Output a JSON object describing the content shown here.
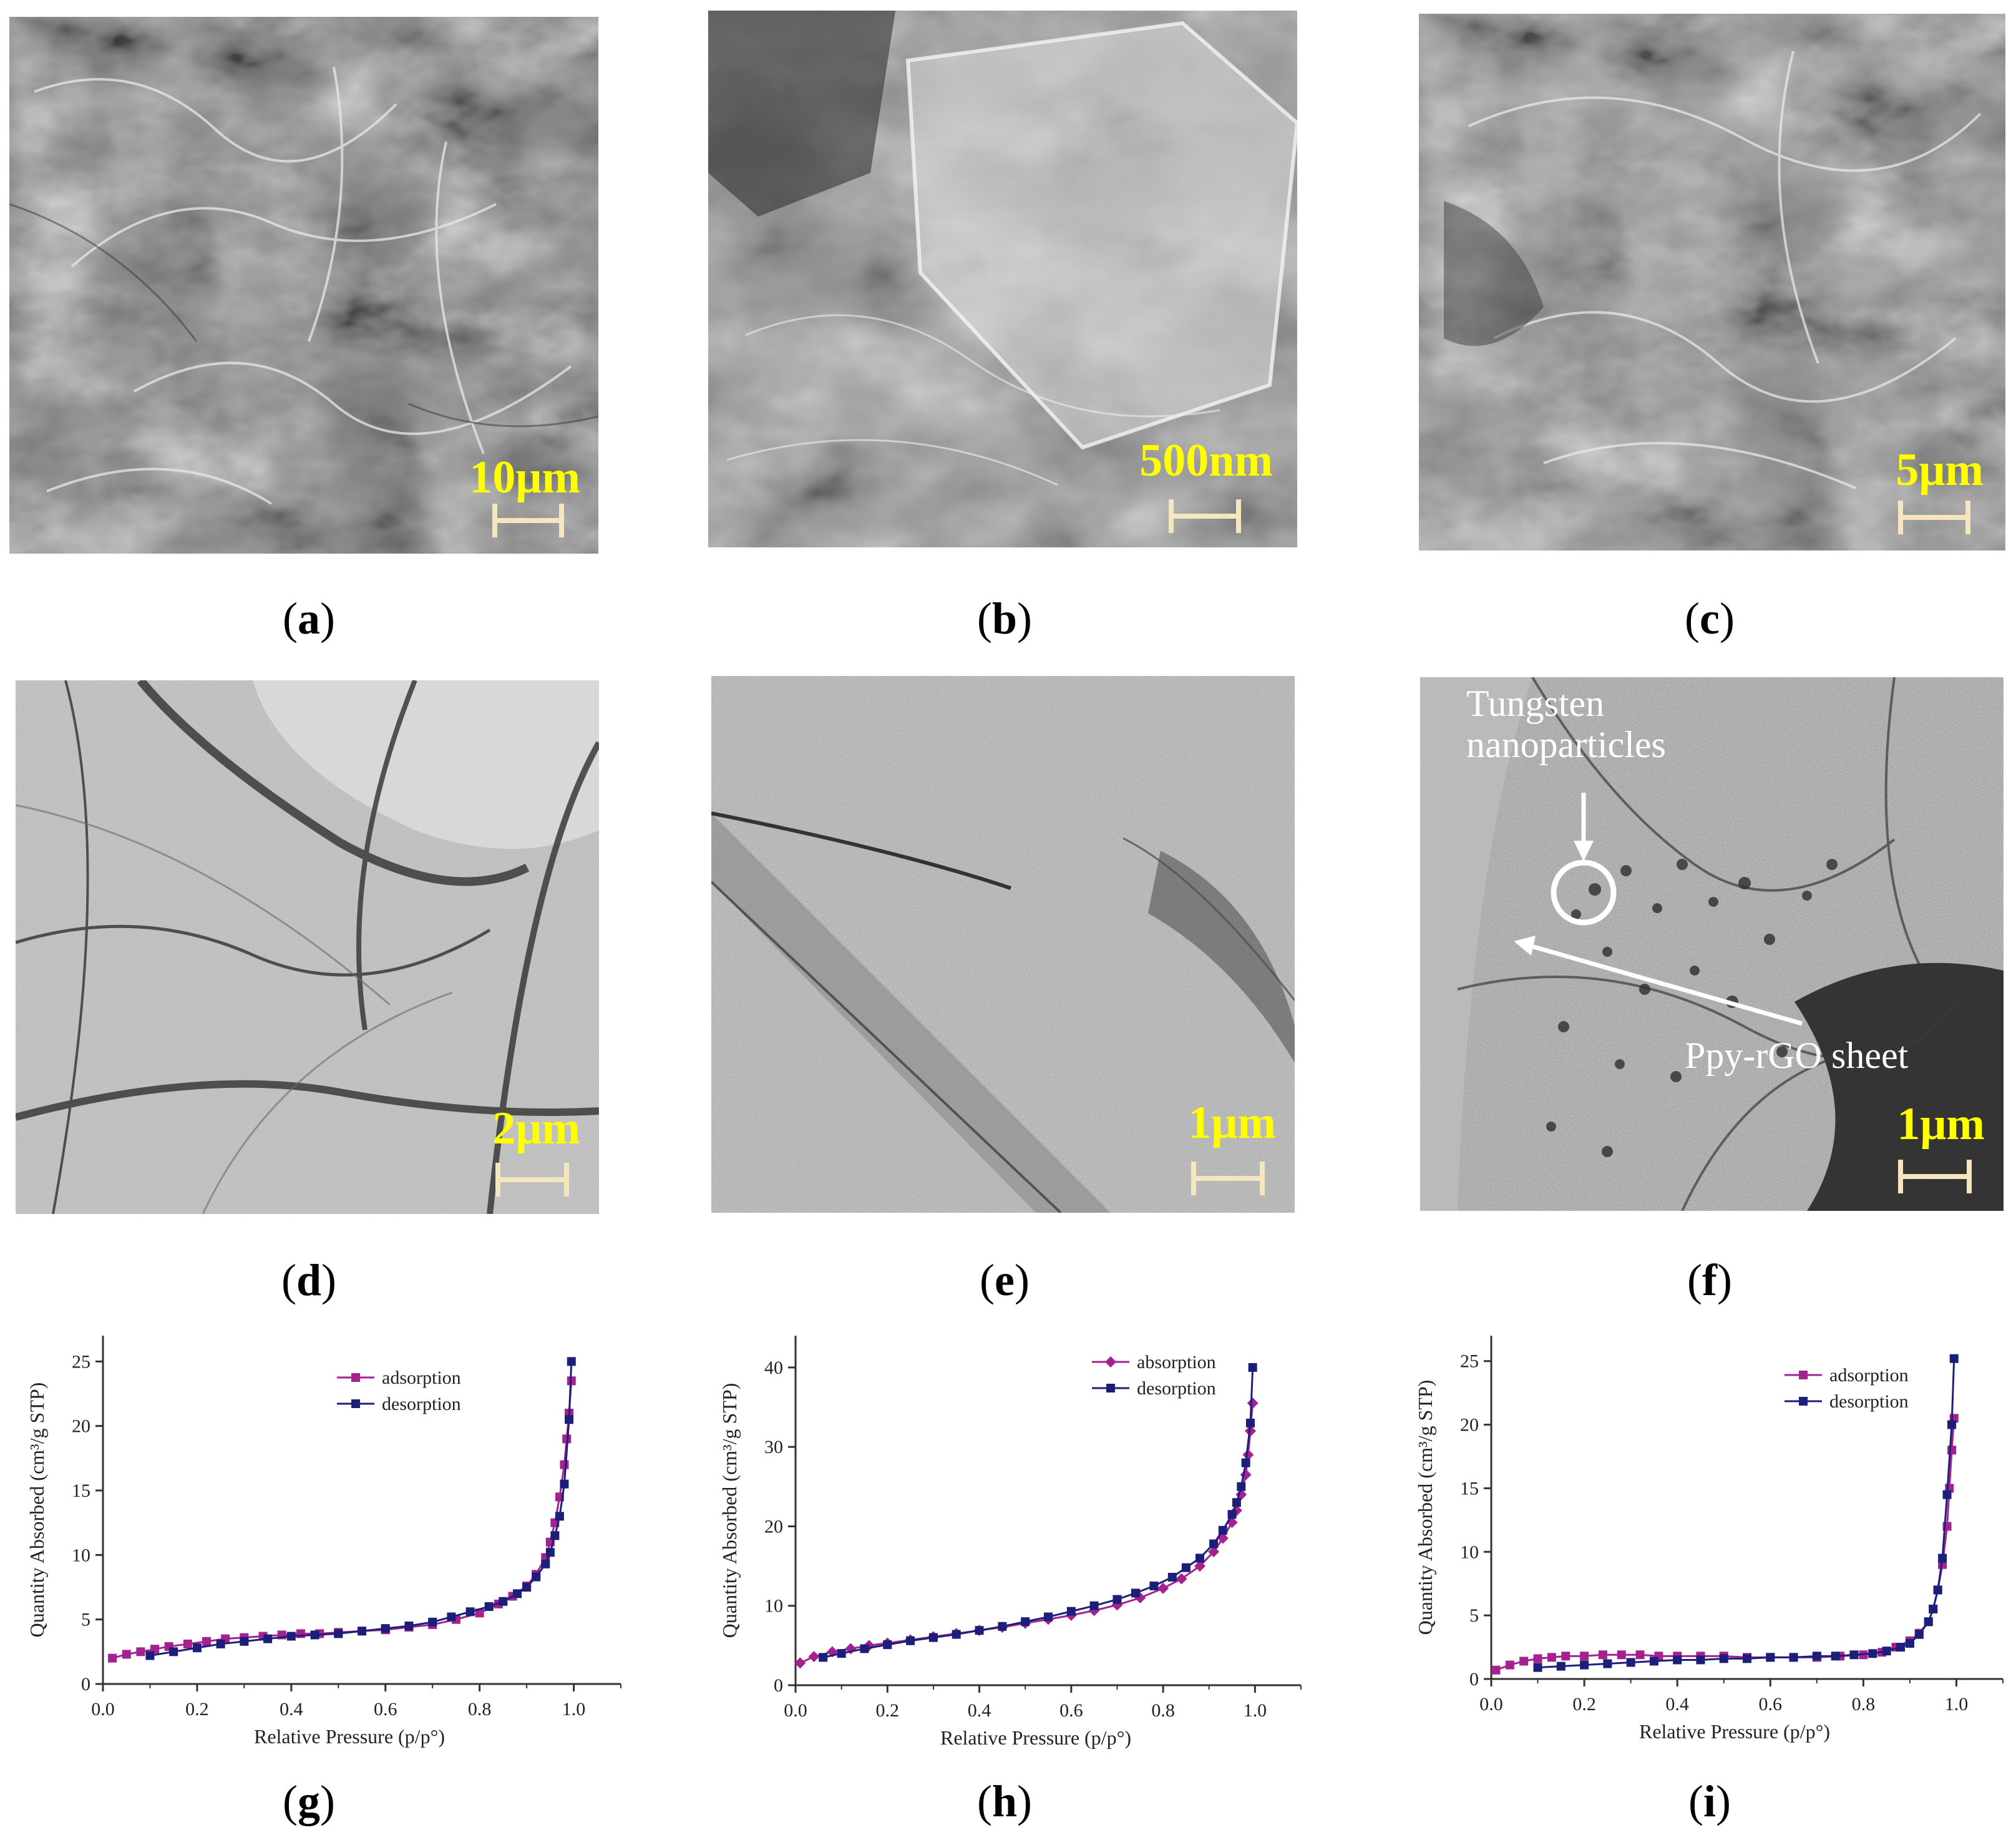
{
  "panels": {
    "a": {
      "label": "a",
      "scale_bar": "10μm"
    },
    "b": {
      "label": "b",
      "scale_bar": "500nm"
    },
    "c": {
      "label": "c",
      "scale_bar": "5μm"
    },
    "d": {
      "label": "d",
      "scale_bar": "2μm"
    },
    "e": {
      "label": "e",
      "scale_bar": "1μm"
    },
    "f": {
      "label": "f",
      "scale_bar": "1μm",
      "annotation_particles_line1": "Tungsten",
      "annotation_particles_line2": "nanoparticles",
      "annotation_sheet": "Ppy-rGO sheet"
    },
    "g": {
      "label": "g"
    },
    "h": {
      "label": "h"
    },
    "i": {
      "label": "i"
    }
  },
  "colors": {
    "adsorption": "#a3228f",
    "desorption": "#1c1f7a",
    "scale_bar": "#f5e6c0",
    "scale_text": "#ffff00"
  },
  "chart_data": [
    {
      "panel": "g",
      "type": "line",
      "xlabel": "Relative Pressure (p/p°)",
      "ylabel": "Quantity Absorbed (cm³/g STP)",
      "xlim": [
        0,
        1.1
      ],
      "ylim": [
        0,
        27
      ],
      "xticks": [
        "0.0",
        "0.2",
        "0.4",
        "0.6",
        "0.8",
        "1.0"
      ],
      "yticks": [
        "0",
        "5",
        "10",
        "15",
        "20",
        "25"
      ],
      "legend": "top-right",
      "series": [
        {
          "name": "adsorption",
          "marker": "square",
          "x": [
            0.02,
            0.05,
            0.08,
            0.11,
            0.14,
            0.18,
            0.22,
            0.26,
            0.3,
            0.34,
            0.38,
            0.42,
            0.46,
            0.5,
            0.55,
            0.6,
            0.65,
            0.7,
            0.75,
            0.8,
            0.84,
            0.87,
            0.9,
            0.92,
            0.94,
            0.95,
            0.96,
            0.97,
            0.98,
            0.985,
            0.99,
            0.995
          ],
          "y": [
            2.0,
            2.3,
            2.5,
            2.7,
            2.9,
            3.1,
            3.3,
            3.5,
            3.6,
            3.7,
            3.8,
            3.9,
            3.9,
            4.0,
            4.1,
            4.2,
            4.4,
            4.6,
            5.0,
            5.5,
            6.2,
            6.8,
            7.6,
            8.5,
            9.8,
            11.0,
            12.5,
            14.5,
            17.0,
            19.0,
            21.0,
            23.5
          ]
        },
        {
          "name": "desorption",
          "marker": "square",
          "x": [
            0.995,
            0.99,
            0.98,
            0.97,
            0.96,
            0.95,
            0.94,
            0.92,
            0.9,
            0.88,
            0.85,
            0.82,
            0.78,
            0.74,
            0.7,
            0.65,
            0.6,
            0.55,
            0.5,
            0.45,
            0.4,
            0.35,
            0.3,
            0.25,
            0.2,
            0.15,
            0.1
          ],
          "y": [
            25.0,
            20.5,
            15.5,
            13.0,
            11.5,
            10.2,
            9.3,
            8.3,
            7.5,
            7.0,
            6.4,
            6.0,
            5.6,
            5.2,
            4.8,
            4.5,
            4.3,
            4.1,
            3.9,
            3.8,
            3.7,
            3.5,
            3.3,
            3.1,
            2.8,
            2.5,
            2.2
          ]
        }
      ]
    },
    {
      "panel": "h",
      "type": "line",
      "xlabel": "Relative Pressure (p/p°)",
      "ylabel": "Quantity Absorbed (cm³/g STP)",
      "xlim": [
        0,
        1.1
      ],
      "ylim": [
        0,
        44
      ],
      "xticks": [
        "0.0",
        "0.2",
        "0.4",
        "0.6",
        "0.8",
        "1.0"
      ],
      "yticks": [
        "0",
        "10",
        "20",
        "30",
        "40"
      ],
      "legend": "top-right",
      "series": [
        {
          "name": "absorption",
          "marker": "diamond",
          "x": [
            0.01,
            0.04,
            0.08,
            0.12,
            0.16,
            0.2,
            0.25,
            0.3,
            0.35,
            0.4,
            0.45,
            0.5,
            0.55,
            0.6,
            0.65,
            0.7,
            0.75,
            0.8,
            0.84,
            0.88,
            0.91,
            0.93,
            0.95,
            0.96,
            0.97,
            0.98,
            0.985,
            0.99,
            0.995
          ],
          "y": [
            2.8,
            3.6,
            4.2,
            4.6,
            5.0,
            5.3,
            5.7,
            6.1,
            6.5,
            6.9,
            7.3,
            7.8,
            8.3,
            8.8,
            9.4,
            10.1,
            11.0,
            12.2,
            13.4,
            15.0,
            16.8,
            18.5,
            20.5,
            22.0,
            24.0,
            26.5,
            29.0,
            32.0,
            35.5
          ]
        },
        {
          "name": "desorption",
          "marker": "square",
          "x": [
            0.995,
            0.99,
            0.98,
            0.97,
            0.96,
            0.95,
            0.93,
            0.91,
            0.88,
            0.85,
            0.82,
            0.78,
            0.74,
            0.7,
            0.65,
            0.6,
            0.55,
            0.5,
            0.45,
            0.4,
            0.35,
            0.3,
            0.25,
            0.2,
            0.15,
            0.1,
            0.06
          ],
          "y": [
            40.0,
            33.0,
            28.0,
            25.0,
            23.0,
            21.5,
            19.5,
            17.8,
            16.0,
            14.8,
            13.6,
            12.5,
            11.6,
            10.8,
            10.0,
            9.3,
            8.6,
            8.0,
            7.4,
            6.9,
            6.4,
            6.0,
            5.6,
            5.1,
            4.6,
            4.0,
            3.5
          ]
        }
      ]
    },
    {
      "panel": "i",
      "type": "line",
      "xlabel": "Relative Pressure (p/p°)",
      "ylabel": "Quantity Absorbed (cm³/g STP)",
      "xlim": [
        0,
        1.1
      ],
      "ylim": [
        0,
        27
      ],
      "xticks": [
        "0.0",
        "0.2",
        "0.4",
        "0.6",
        "0.8",
        "1.0"
      ],
      "yticks": [
        "0",
        "5",
        "10",
        "15",
        "20",
        "25"
      ],
      "legend": "top-right",
      "series": [
        {
          "name": "adsorption",
          "marker": "square",
          "x": [
            0.01,
            0.04,
            0.07,
            0.1,
            0.13,
            0.16,
            0.2,
            0.24,
            0.28,
            0.32,
            0.36,
            0.4,
            0.45,
            0.5,
            0.55,
            0.6,
            0.65,
            0.7,
            0.75,
            0.8,
            0.84,
            0.87,
            0.9,
            0.92,
            0.94,
            0.95,
            0.96,
            0.97,
            0.98,
            0.985,
            0.99,
            0.995
          ],
          "y": [
            0.7,
            1.1,
            1.4,
            1.6,
            1.7,
            1.8,
            1.8,
            1.9,
            1.9,
            1.9,
            1.8,
            1.8,
            1.8,
            1.8,
            1.7,
            1.7,
            1.7,
            1.7,
            1.8,
            1.9,
            2.1,
            2.5,
            3.0,
            3.6,
            4.5,
            5.5,
            7.0,
            9.0,
            12.0,
            15.0,
            18.0,
            20.5
          ]
        },
        {
          "name": "desorption",
          "marker": "square",
          "x": [
            0.995,
            0.99,
            0.98,
            0.97,
            0.96,
            0.95,
            0.94,
            0.92,
            0.9,
            0.88,
            0.85,
            0.82,
            0.78,
            0.74,
            0.7,
            0.65,
            0.6,
            0.55,
            0.5,
            0.45,
            0.4,
            0.35,
            0.3,
            0.25,
            0.2,
            0.15,
            0.1
          ],
          "y": [
            25.2,
            20.0,
            14.5,
            9.5,
            7.0,
            5.5,
            4.5,
            3.5,
            2.8,
            2.5,
            2.2,
            2.0,
            1.9,
            1.8,
            1.8,
            1.7,
            1.7,
            1.6,
            1.6,
            1.5,
            1.5,
            1.4,
            1.3,
            1.2,
            1.1,
            1.0,
            0.9
          ]
        }
      ]
    }
  ]
}
